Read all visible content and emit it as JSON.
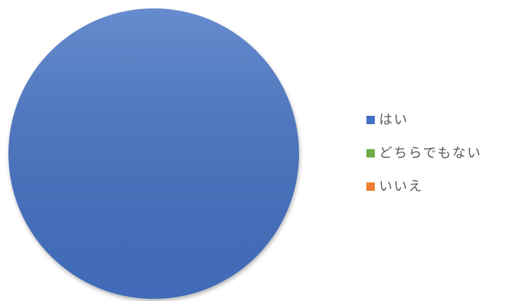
{
  "chart_data": {
    "type": "pie",
    "categories": [
      "はい",
      "どちらでもない",
      "いいえ"
    ],
    "values": [
      100,
      0,
      0
    ],
    "colors": [
      "#4472c4",
      "#70ad47",
      "#ed7d31"
    ]
  }
}
